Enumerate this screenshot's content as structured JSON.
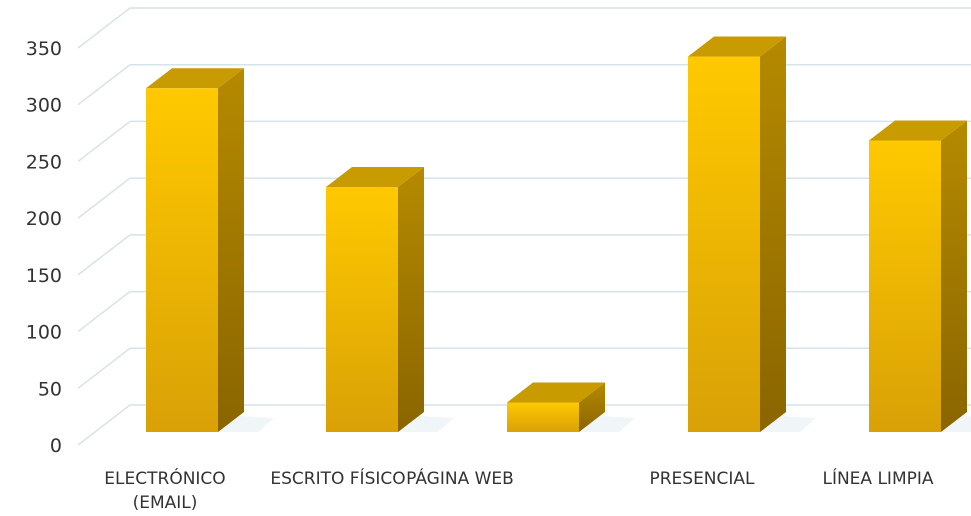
{
  "chart_data": {
    "type": "bar",
    "title": "",
    "xlabel": "",
    "ylabel": "",
    "categories": [
      [
        "ELECTRÓNICO",
        "(EMAIL)"
      ],
      [
        "ESCRITO FÍSICO"
      ],
      [
        "PÁGINA WEB"
      ],
      [
        "PRESENCIAL"
      ],
      [
        "LÍNEA LIMPIA"
      ]
    ],
    "values": [
      303,
      216,
      26,
      331,
      257
    ],
    "ylim": [
      0,
      350
    ],
    "yticks": [
      0,
      50,
      100,
      150,
      200,
      250,
      300,
      350
    ],
    "grid": true,
    "legend": "none",
    "three_d": true,
    "colors": {
      "front_top": "#FFC900",
      "front_bottom": "#D9A106",
      "side": "#A97F00",
      "top": "#C89B00",
      "grid": "#D6E3E8",
      "floor_shadow": "#E6EEF2"
    }
  }
}
